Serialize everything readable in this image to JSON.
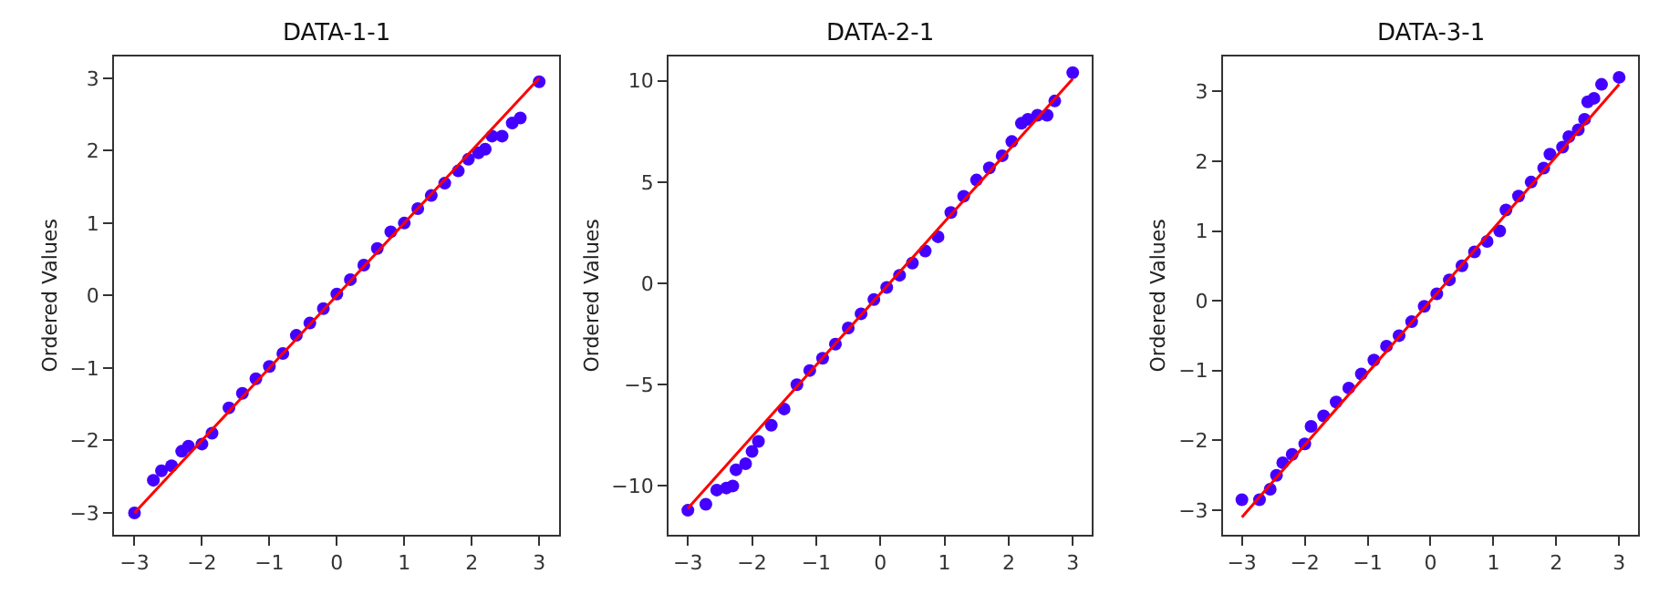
{
  "chart_data": [
    {
      "type": "scatter",
      "title": "DATA-1-1",
      "ylabel": "Ordered Values",
      "xlim": [
        -3.3,
        3.3
      ],
      "ylim": [
        -3.3,
        3.3
      ],
      "xticks": [
        {
          "value": -3,
          "label": "−3"
        },
        {
          "value": -2,
          "label": "−2"
        },
        {
          "value": -1,
          "label": "−1"
        },
        0,
        1,
        2,
        3
      ],
      "yticks": [
        {
          "value": -3,
          "label": "−3"
        },
        {
          "value": -2,
          "label": "−2"
        },
        {
          "value": -1,
          "label": "−1"
        },
        0,
        1,
        2,
        3
      ],
      "series": [
        {
          "marker": "circle",
          "color": "#4400ff",
          "x": [
            -3,
            -2.72,
            -2.6,
            -2.45,
            -2.3,
            -2.2,
            -2.0,
            -1.85,
            -1.6,
            -1.4,
            -1.2,
            -1.0,
            -0.8,
            -0.6,
            -0.4,
            -0.2,
            0,
            0.2,
            0.4,
            0.6,
            0.8,
            1.0,
            1.2,
            1.4,
            1.6,
            1.8,
            1.95,
            2.1,
            2.2,
            2.3,
            2.45,
            2.6,
            2.72,
            3.0
          ],
          "values": [
            -3,
            -2.55,
            -2.42,
            -2.35,
            -2.15,
            -2.08,
            -2.05,
            -1.9,
            -1.55,
            -1.35,
            -1.15,
            -0.98,
            -0.8,
            -0.55,
            -0.38,
            -0.18,
            0.02,
            0.22,
            0.42,
            0.65,
            0.88,
            1.0,
            1.2,
            1.38,
            1.55,
            1.72,
            1.88,
            1.97,
            2.02,
            2.2,
            2.2,
            2.38,
            2.45,
            2.95
          ]
        },
        {
          "type": "line",
          "color": "#ff0000",
          "x": [
            -3,
            3
          ],
          "values": [
            -3.0,
            3.0
          ]
        }
      ]
    },
    {
      "type": "scatter",
      "title": "DATA-2-1",
      "ylabel": "Ordered Values",
      "xlim": [
        -3.3,
        3.3
      ],
      "ylim": [
        -12.4,
        11.2
      ],
      "xticks": [
        {
          "value": -3,
          "label": "−3"
        },
        {
          "value": -2,
          "label": "−2"
        },
        {
          "value": -1,
          "label": "−1"
        },
        0,
        1,
        2,
        3
      ],
      "yticks": [
        {
          "value": -10,
          "label": "−10"
        },
        {
          "value": -5,
          "label": "−5"
        },
        0,
        5,
        10
      ],
      "series": [
        {
          "marker": "circle",
          "color": "#4400ff",
          "x": [
            -3,
            -2.72,
            -2.55,
            -2.4,
            -2.3,
            -2.25,
            -2.1,
            -2.0,
            -1.9,
            -1.7,
            -1.5,
            -1.3,
            -1.1,
            -0.9,
            -0.7,
            -0.5,
            -0.3,
            -0.1,
            0.1,
            0.3,
            0.5,
            0.7,
            0.9,
            1.1,
            1.3,
            1.5,
            1.7,
            1.9,
            2.05,
            2.2,
            2.3,
            2.45,
            2.6,
            2.72,
            3.0
          ],
          "values": [
            -11.2,
            -10.9,
            -10.2,
            -10.1,
            -10.0,
            -9.2,
            -8.9,
            -8.3,
            -7.8,
            -7.0,
            -6.2,
            -5.0,
            -4.3,
            -3.7,
            -3.0,
            -2.2,
            -1.5,
            -0.8,
            -0.2,
            0.4,
            1.0,
            1.6,
            2.3,
            3.5,
            4.3,
            5.1,
            5.7,
            6.3,
            7.0,
            7.9,
            8.1,
            8.3,
            8.3,
            9.0,
            10.4
          ]
        },
        {
          "type": "line",
          "color": "#ff0000",
          "x": [
            -3,
            3
          ],
          "values": [
            -11.1,
            10.1
          ]
        }
      ]
    },
    {
      "type": "scatter",
      "title": "DATA-3-1",
      "ylabel": "Ordered Values",
      "xlim": [
        -3.3,
        3.3
      ],
      "ylim": [
        -3.35,
        3.5
      ],
      "xticks": [
        {
          "value": -3,
          "label": "−3"
        },
        {
          "value": -2,
          "label": "−2"
        },
        {
          "value": -1,
          "label": "−1"
        },
        0,
        1,
        2,
        3
      ],
      "yticks": [
        {
          "value": -3,
          "label": "−3"
        },
        {
          "value": -2,
          "label": "−2"
        },
        {
          "value": -1,
          "label": "−1"
        },
        0,
        1,
        2,
        3
      ],
      "series": [
        {
          "marker": "circle",
          "color": "#4400ff",
          "x": [
            -3,
            -2.72,
            -2.55,
            -2.45,
            -2.35,
            -2.2,
            -2.0,
            -1.9,
            -1.7,
            -1.5,
            -1.3,
            -1.1,
            -0.9,
            -0.7,
            -0.5,
            -0.3,
            -0.1,
            0.1,
            0.3,
            0.5,
            0.7,
            0.9,
            1.1,
            1.2,
            1.4,
            1.6,
            1.8,
            1.9,
            2.1,
            2.2,
            2.35,
            2.45,
            2.5,
            2.6,
            2.72,
            3.0
          ],
          "values": [
            -2.85,
            -2.85,
            -2.7,
            -2.5,
            -2.32,
            -2.2,
            -2.05,
            -1.8,
            -1.65,
            -1.45,
            -1.25,
            -1.05,
            -0.85,
            -0.65,
            -0.5,
            -0.3,
            -0.08,
            0.1,
            0.3,
            0.5,
            0.7,
            0.85,
            1.0,
            1.3,
            1.5,
            1.7,
            1.9,
            2.1,
            2.2,
            2.35,
            2.45,
            2.6,
            2.85,
            2.9,
            3.1,
            3.2
          ]
        },
        {
          "type": "line",
          "color": "#ff0000",
          "x": [
            -3,
            3
          ],
          "values": [
            -3.1,
            3.1
          ]
        }
      ]
    }
  ]
}
